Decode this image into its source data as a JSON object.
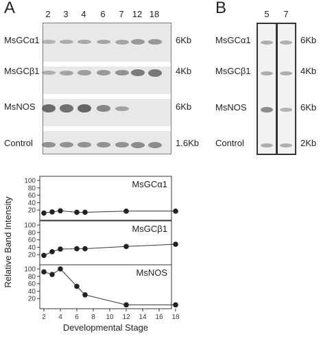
{
  "panelA": {
    "letter": "A",
    "lanes": [
      "2",
      "3",
      "4",
      "6",
      "7",
      "12",
      "18"
    ],
    "rows": [
      {
        "name": "MsGCα1",
        "size": "6Kb",
        "intensity": [
          0.15,
          0.22,
          0.25,
          0.28,
          0.3,
          0.4,
          0.4
        ]
      },
      {
        "name": "MsGCβ1",
        "size": "4Kb",
        "intensity": [
          0.2,
          0.3,
          0.35,
          0.4,
          0.45,
          0.65,
          0.7
        ]
      },
      {
        "name": "MsNOS",
        "size": "6Kb",
        "intensity": [
          0.8,
          0.75,
          0.85,
          0.55,
          0.3,
          0.0,
          0.0
        ]
      },
      {
        "name": "Control",
        "size": "1.6Kb",
        "intensity": [
          0.45,
          0.45,
          0.45,
          0.45,
          0.45,
          0.5,
          0.5
        ]
      }
    ]
  },
  "panelB": {
    "letter": "B",
    "lanes": [
      "5",
      "7"
    ],
    "rows": [
      {
        "name": "MsGCα1",
        "size": "6Kb",
        "intensity": [
          0.25,
          0.22
        ]
      },
      {
        "name": "MsGCβ1",
        "size": "4Kb",
        "intensity": [
          0.25,
          0.25
        ]
      },
      {
        "name": "MsNOS",
        "size": "6Kb",
        "intensity": [
          0.55,
          0.2
        ]
      },
      {
        "name": "Control",
        "size": "2Kb",
        "intensity": [
          0.25,
          0.22
        ]
      }
    ]
  },
  "chart_data": {
    "type": "line",
    "xlabel": "Developmental Stage",
    "ylabel": "Relative Band Intensity",
    "xlim": [
      2,
      18
    ],
    "xticks": [
      2,
      4,
      6,
      8,
      10,
      12,
      14,
      16,
      18
    ],
    "ylim": [
      0,
      100
    ],
    "yticks": [
      20,
      40,
      60,
      80,
      100
    ],
    "panels": [
      {
        "name": "MsGCα1",
        "x": [
          2,
          3,
          4,
          6,
          7,
          12,
          18
        ],
        "y": [
          12,
          15,
          18,
          14,
          14,
          17,
          17
        ]
      },
      {
        "name": "MsGCβ1",
        "x": [
          2,
          3,
          4,
          6,
          7,
          12,
          18
        ],
        "y": [
          18,
          28,
          35,
          36,
          36,
          42,
          48
        ]
      },
      {
        "name": "MsNOS",
        "x": [
          2,
          3,
          4,
          6,
          7,
          12,
          18
        ],
        "y": [
          92,
          85,
          100,
          53,
          30,
          3,
          3
        ]
      }
    ]
  }
}
